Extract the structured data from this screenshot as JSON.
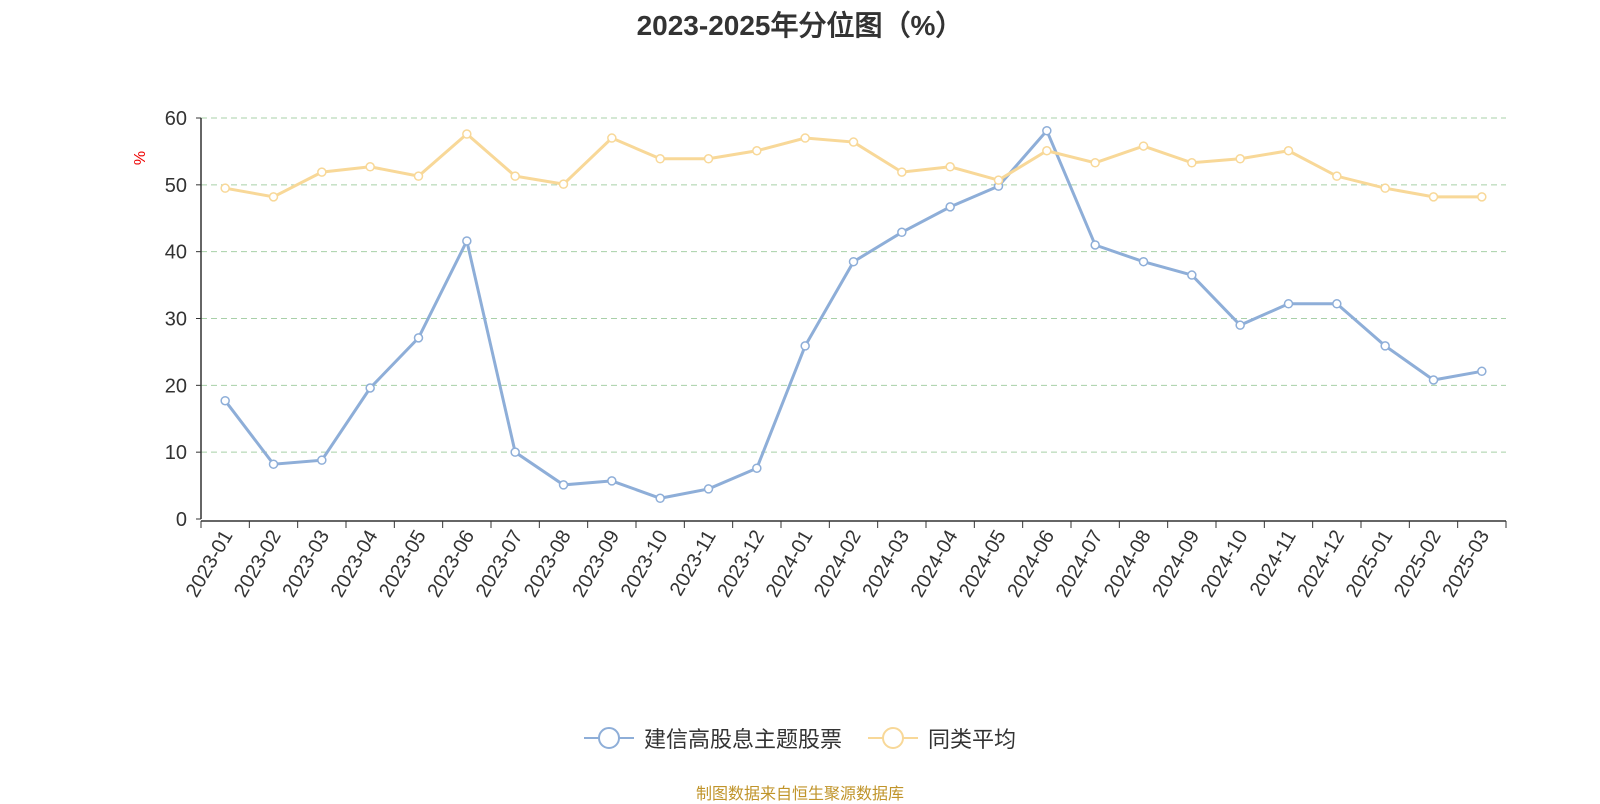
{
  "chart_data": {
    "type": "line",
    "title": "2023-2025年分位图（%）",
    "ylabel": "%",
    "ylim": [
      0,
      60
    ],
    "yticks": [
      0,
      10,
      20,
      30,
      40,
      50,
      60
    ],
    "grid": true,
    "legend_position": "bottom",
    "categories": [
      "2023-01",
      "2023-02",
      "2023-03",
      "2023-04",
      "2023-05",
      "2023-06",
      "2023-07",
      "2023-08",
      "2023-09",
      "2023-10",
      "2023-11",
      "2023-12",
      "2024-01",
      "2024-02",
      "2024-03",
      "2024-04",
      "2024-05",
      "2024-06",
      "2024-07",
      "2024-08",
      "2024-09",
      "2024-10",
      "2024-11",
      "2024-12",
      "2025-01",
      "2025-02",
      "2025-03"
    ],
    "series": [
      {
        "name": "建信高股息主题股票",
        "color": "#8eaed8",
        "values": [
          17.7,
          8.2,
          8.8,
          19.6,
          27.1,
          41.6,
          10.0,
          5.1,
          5.7,
          3.1,
          4.5,
          7.6,
          25.9,
          38.5,
          42.9,
          46.7,
          49.8,
          58.1,
          41.0,
          38.5,
          36.5,
          29.0,
          32.2,
          32.2,
          25.9,
          20.8,
          22.1
        ]
      },
      {
        "name": "同类平均",
        "color": "#f8d898",
        "values": [
          49.5,
          48.2,
          51.9,
          52.7,
          51.3,
          57.6,
          51.3,
          50.1,
          57.0,
          53.9,
          53.9,
          55.1,
          57.0,
          56.4,
          51.9,
          52.7,
          50.7,
          55.1,
          53.3,
          55.8,
          53.3,
          53.9,
          55.1,
          51.3,
          49.5,
          48.2,
          48.2
        ]
      }
    ]
  },
  "footer": "制图数据来自恒生聚源数据库"
}
